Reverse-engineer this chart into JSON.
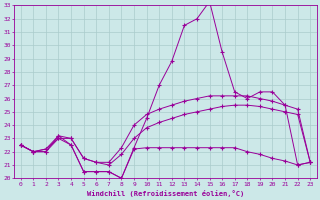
{
  "xlabel": "Windchill (Refroidissement éolien,°C)",
  "bg_color": "#cce8e8",
  "line_color": "#990099",
  "grid_color": "#aacccc",
  "xlim": [
    -0.5,
    23.5
  ],
  "ylim": [
    20,
    33
  ],
  "xticks": [
    0,
    1,
    2,
    3,
    4,
    5,
    6,
    7,
    8,
    9,
    10,
    11,
    12,
    13,
    14,
    15,
    16,
    17,
    18,
    19,
    20,
    21,
    22,
    23
  ],
  "yticks": [
    20,
    21,
    22,
    23,
    24,
    25,
    26,
    27,
    28,
    29,
    30,
    31,
    32,
    33
  ],
  "series": {
    "line1": [
      22.5,
      22.0,
      22.0,
      23.2,
      22.5,
      20.5,
      20.5,
      20.5,
      20.0,
      22.3,
      24.5,
      27.0,
      28.8,
      31.5,
      32.0,
      33.3,
      29.5,
      26.5,
      26.0,
      26.5,
      26.5,
      25.5,
      21.0,
      21.2
    ],
    "line2": [
      22.5,
      22.0,
      22.2,
      23.2,
      23.0,
      21.5,
      21.2,
      21.2,
      22.3,
      24.0,
      24.8,
      25.2,
      25.5,
      25.8,
      26.0,
      26.2,
      26.2,
      26.2,
      26.2,
      26.0,
      25.8,
      25.5,
      25.2,
      21.2
    ],
    "line3": [
      22.5,
      22.0,
      22.2,
      23.0,
      23.0,
      21.5,
      21.2,
      21.0,
      21.8,
      23.0,
      23.8,
      24.2,
      24.5,
      24.8,
      25.0,
      25.2,
      25.4,
      25.5,
      25.5,
      25.4,
      25.2,
      25.0,
      24.8,
      21.2
    ],
    "line4": [
      22.5,
      22.0,
      22.0,
      23.0,
      22.5,
      20.5,
      20.5,
      20.5,
      20.0,
      22.2,
      22.3,
      22.3,
      22.3,
      22.3,
      22.3,
      22.3,
      22.3,
      22.3,
      22.0,
      21.8,
      21.5,
      21.3,
      21.0,
      21.2
    ]
  }
}
